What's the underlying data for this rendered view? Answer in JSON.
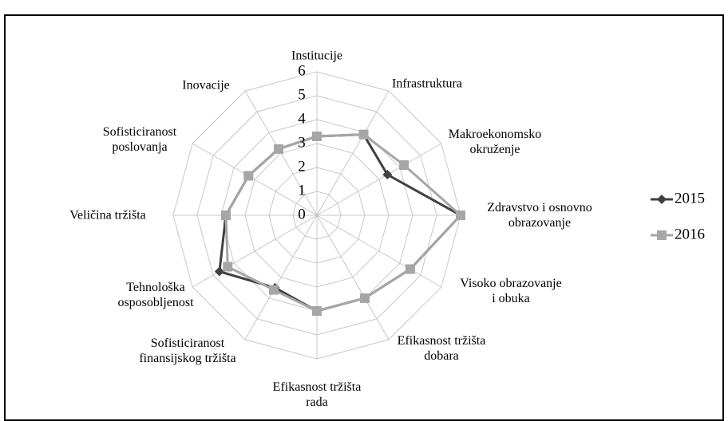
{
  "chart_data": {
    "type": "radar",
    "categories": [
      "Institucije",
      "Infrastruktura",
      "Makroekonomsko\nokruženje",
      "Zdravstvo i osnovno\nobrazovanje",
      "Visoko obrazovanje\ni obuka",
      "Efikasnost tržišta\ndobara",
      "Efikasnost tržišta\nrada",
      "Sofisticiranost\nfinansijskog tržišta",
      "Tehnološka\nosposobljenost",
      "Veličina tržišta",
      "Sofisticiranost\nposlovanja",
      "Inovacije"
    ],
    "series": [
      {
        "name": "2015",
        "color": "#404040",
        "marker": "diamond",
        "values": [
          3.3,
          3.9,
          3.4,
          6.0,
          4.5,
          4.0,
          4.0,
          3.5,
          4.7,
          3.8,
          3.3,
          3.2
        ]
      },
      {
        "name": "2016",
        "color": "#a6a6a6",
        "marker": "square",
        "values": [
          3.3,
          3.9,
          4.2,
          6.0,
          4.5,
          4.0,
          4.0,
          3.6,
          4.3,
          3.8,
          3.3,
          3.2
        ]
      }
    ],
    "ylim": [
      0,
      6
    ],
    "yticks": [
      0,
      1,
      2,
      3,
      4,
      5,
      6
    ],
    "grid": true,
    "legend": "right"
  }
}
